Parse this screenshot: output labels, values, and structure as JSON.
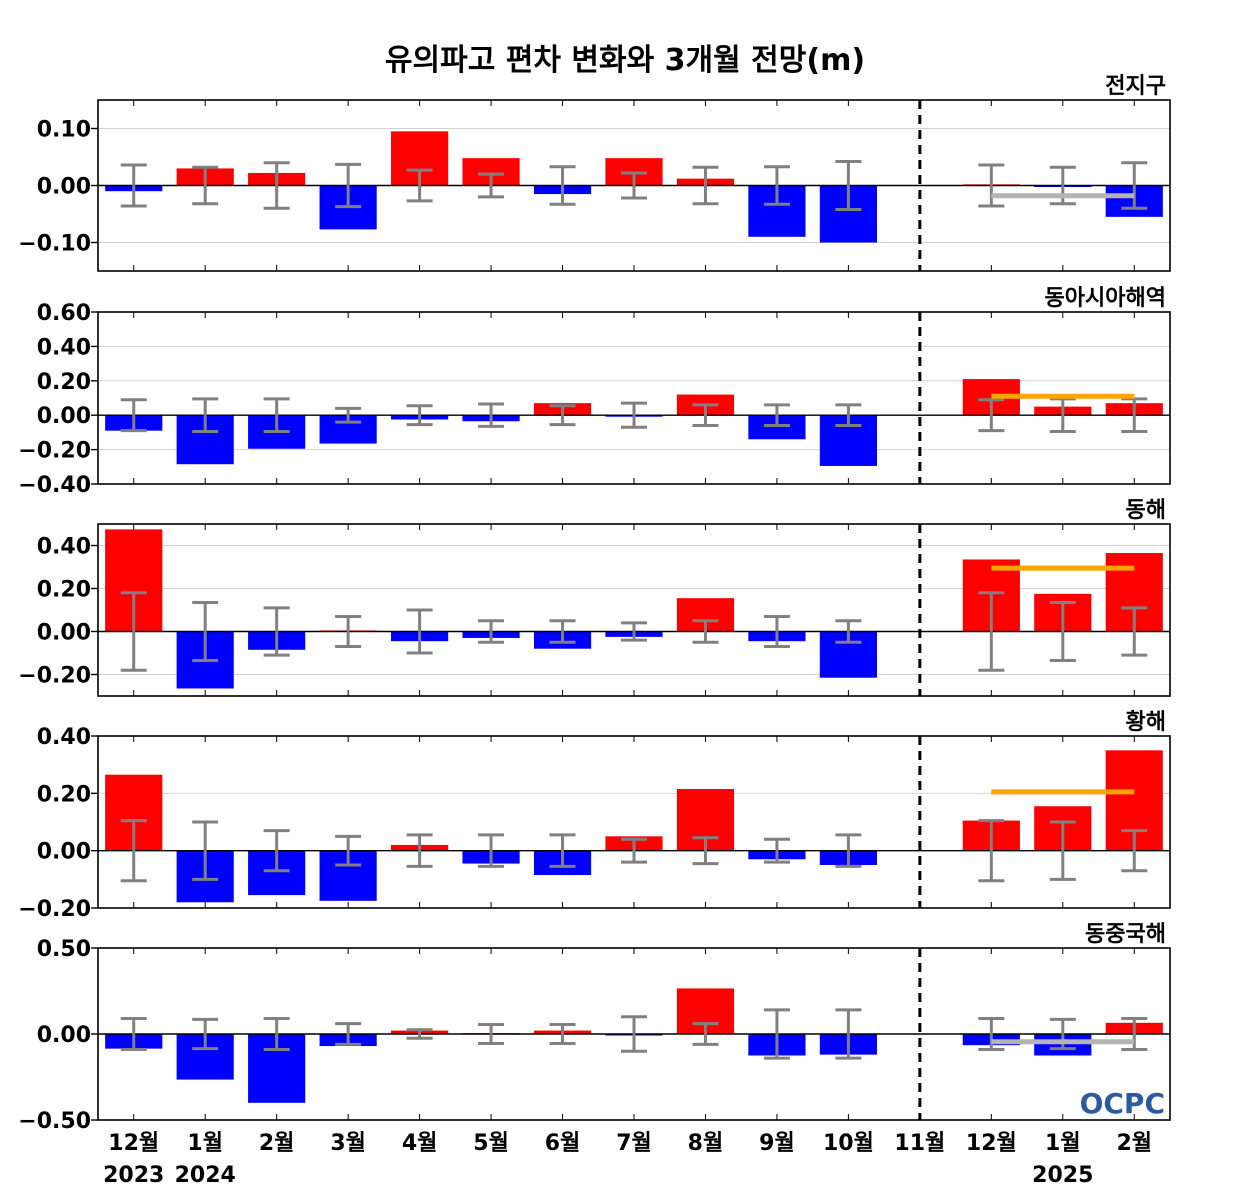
{
  "title": "유의파고 편차 변화와 3개월 전망(m)",
  "logo_text": "OCPC",
  "colors": {
    "positive": "#ff0000",
    "negative": "#0000ff",
    "error_bar": "#808080",
    "forecast_positive": "#ffa500",
    "forecast_negative": "#b4b4b4",
    "grid": "#d3d3d3",
    "logo_dark": "#2a5aa0",
    "logo_light": "#8fc1e6"
  },
  "chart_data": {
    "type": "bar",
    "categories": [
      "12월",
      "1월",
      "2월",
      "3월",
      "4월",
      "5월",
      "6월",
      "7월",
      "8월",
      "9월",
      "10월",
      "11월",
      "12월",
      "1월",
      "2월"
    ],
    "year_labels": [
      {
        "index": 0,
        "label": "2023"
      },
      {
        "index": 1,
        "label": "2024"
      },
      {
        "index": 13,
        "label": "2025"
      }
    ],
    "divider_after_index": 11,
    "grid": true,
    "panels": [
      {
        "name": "전지구",
        "ylim": [
          -0.15,
          0.15
        ],
        "yticks": [
          0.1,
          0.0,
          -0.1
        ],
        "ytick_labels": [
          "0.10",
          "0.00",
          "−0.10"
        ],
        "values": [
          -0.01,
          0.03,
          0.022,
          -0.077,
          0.095,
          0.048,
          -0.015,
          0.048,
          0.012,
          -0.09,
          -0.1,
          0.0,
          0.002,
          -0.002,
          -0.055
        ],
        "error_bars": [
          0.036,
          0.032,
          0.04,
          0.037,
          0.027,
          0.02,
          0.033,
          0.022,
          0.032,
          0.033,
          0.042,
          0.0,
          0.036,
          0.032,
          0.04
        ],
        "forecast_mean": -0.018
      },
      {
        "name": "동아시아해역",
        "ylim": [
          -0.4,
          0.6
        ],
        "yticks": [
          0.6,
          0.4,
          0.2,
          0.0,
          -0.2,
          -0.4
        ],
        "ytick_labels": [
          "0.60",
          "0.40",
          "0.20",
          "0.00",
          "−0.20",
          "−0.40"
        ],
        "values": [
          -0.09,
          -0.285,
          -0.195,
          -0.165,
          -0.025,
          -0.035,
          0.07,
          -0.005,
          0.12,
          -0.14,
          -0.295,
          0.0,
          0.21,
          0.05,
          0.07
        ],
        "error_bars": [
          0.09,
          0.095,
          0.095,
          0.04,
          0.055,
          0.065,
          0.055,
          0.07,
          0.06,
          0.06,
          0.06,
          0.0,
          0.09,
          0.095,
          0.095
        ],
        "forecast_mean": 0.11
      },
      {
        "name": "동해",
        "ylim": [
          -0.3,
          0.5
        ],
        "yticks": [
          0.4,
          0.2,
          0.0,
          -0.2
        ],
        "ytick_labels": [
          "0.40",
          "0.20",
          "0.00",
          "−0.20"
        ],
        "values": [
          0.475,
          -0.265,
          -0.085,
          0.005,
          -0.045,
          -0.03,
          -0.08,
          -0.025,
          0.155,
          -0.045,
          -0.215,
          0.0,
          0.335,
          0.175,
          0.365
        ],
        "error_bars": [
          0.18,
          0.135,
          0.11,
          0.07,
          0.1,
          0.05,
          0.05,
          0.04,
          0.05,
          0.07,
          0.05,
          0.0,
          0.18,
          0.135,
          0.11
        ],
        "forecast_mean": 0.295
      },
      {
        "name": "황해",
        "ylim": [
          -0.2,
          0.4
        ],
        "yticks": [
          0.4,
          0.2,
          0.0,
          -0.2
        ],
        "ytick_labels": [
          "0.40",
          "0.20",
          "0.00",
          "−0.20"
        ],
        "values": [
          0.265,
          -0.18,
          -0.155,
          -0.175,
          0.02,
          -0.045,
          -0.085,
          0.05,
          0.215,
          -0.03,
          -0.05,
          0.0,
          0.105,
          0.155,
          0.35
        ],
        "error_bars": [
          0.105,
          0.1,
          0.07,
          0.05,
          0.055,
          0.055,
          0.055,
          0.04,
          0.045,
          0.04,
          0.055,
          0.0,
          0.105,
          0.1,
          0.07
        ],
        "forecast_mean": 0.205
      },
      {
        "name": "동중국해",
        "ylim": [
          -0.5,
          0.5
        ],
        "yticks": [
          0.5,
          0.0,
          -0.5
        ],
        "ytick_labels": [
          "0.50",
          "0.00",
          "−0.50"
        ],
        "values": [
          -0.085,
          -0.265,
          -0.4,
          -0.07,
          0.02,
          0.005,
          0.02,
          -0.005,
          0.265,
          -0.125,
          -0.12,
          0.0,
          -0.065,
          -0.125,
          0.065
        ],
        "error_bars": [
          0.09,
          0.085,
          0.09,
          0.06,
          0.025,
          0.055,
          0.055,
          0.1,
          0.06,
          0.14,
          0.14,
          0.0,
          0.09,
          0.085,
          0.09
        ],
        "forecast_mean": -0.045
      }
    ]
  }
}
